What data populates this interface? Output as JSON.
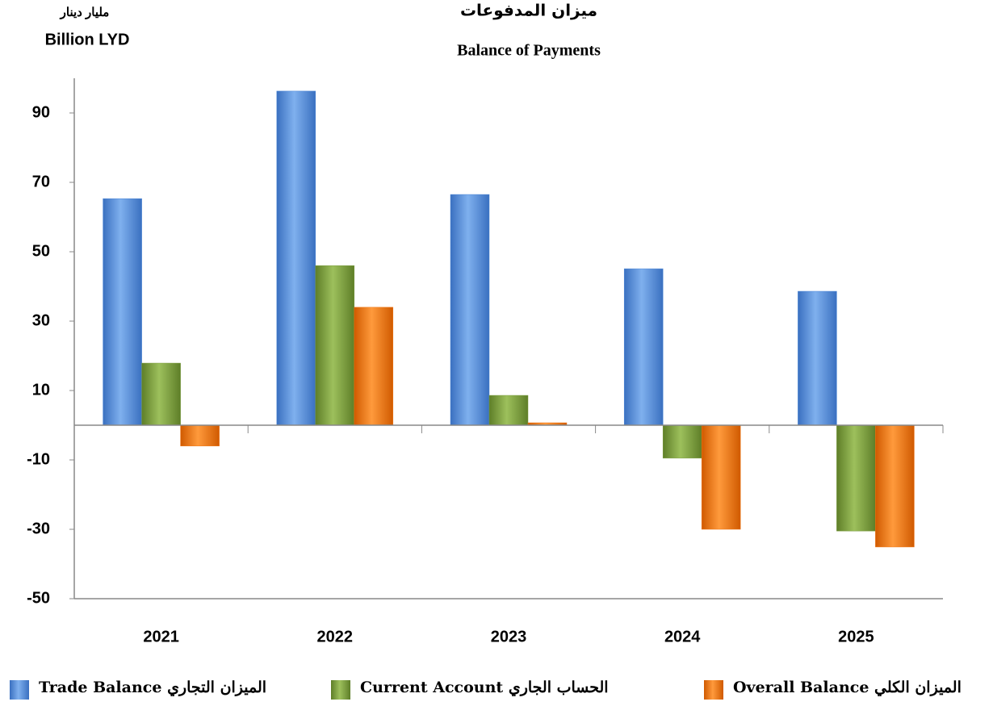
{
  "chart_data": {
    "type": "bar",
    "title": "ميزان المدفوعات",
    "subtitle": "Balance of Payments",
    "unit_label_ar": "مليار دينار",
    "unit_label": "Billion LYD",
    "categories": [
      "2021",
      "2022",
      "2023",
      "2024",
      "2025"
    ],
    "series": [
      {
        "name": "Trade Balance الميزان التجاري",
        "color": "#4a86d6",
        "values": [
          65.3,
          96.3,
          66.5,
          45.1,
          38.6
        ]
      },
      {
        "name": "Current Account الحساب الجاري",
        "color": "#7a9c3c",
        "values": [
          17.9,
          46,
          8.6,
          -9.5,
          -30.5
        ]
      },
      {
        "name": "Overall Balance الميزان الكلي",
        "color": "#f07410",
        "values": [
          -6,
          34,
          0.7,
          -30,
          -35.1
        ]
      }
    ],
    "ylim": [
      -50,
      100
    ],
    "yticks": [
      90,
      70,
      50,
      30,
      10,
      -10,
      -30,
      -50
    ],
    "grid": false
  }
}
